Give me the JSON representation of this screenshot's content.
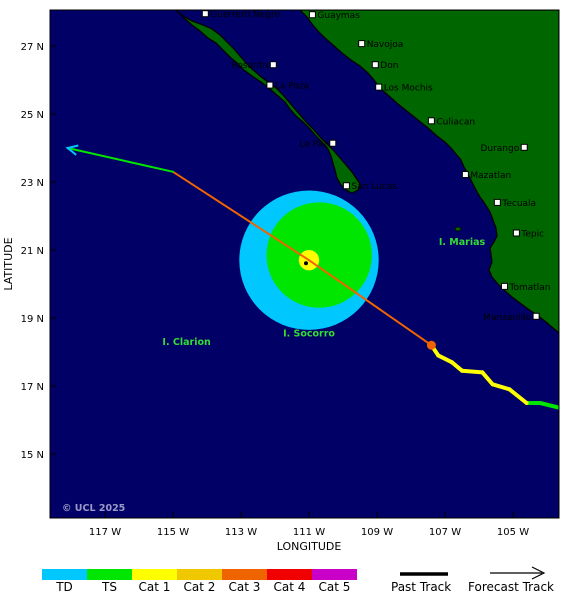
{
  "map": {
    "lat_ticks": [
      "27 N",
      "25 N",
      "23 N",
      "21 N",
      "19 N",
      "17 N",
      "15 N"
    ],
    "lon_ticks": [
      "117 W",
      "115 W",
      "113 W",
      "111 W",
      "109 W",
      "107 W",
      "105 W"
    ],
    "xlabel": "LONGITUDE",
    "ylabel": "LATITUDE",
    "copyright": "© UCL 2025",
    "colors": {
      "ocean": "#000066",
      "land": "#006600",
      "coast": "#000000"
    }
  },
  "cities": [
    {
      "name": "Guerrero Negro",
      "lon": -114.05,
      "lat": 27.95
    },
    {
      "name": "Guaymas",
      "lon": -110.9,
      "lat": 27.92
    },
    {
      "name": "Navojoa",
      "lon": -109.45,
      "lat": 27.07
    },
    {
      "name": "Rosarito",
      "lon": -112.05,
      "lat": 26.45
    },
    {
      "name": "Don",
      "lon": -109.05,
      "lat": 26.45
    },
    {
      "name": "La Poza",
      "lon": -112.15,
      "lat": 25.85
    },
    {
      "name": "Los Mochis",
      "lon": -108.95,
      "lat": 25.79
    },
    {
      "name": "Culiacan",
      "lon": -107.4,
      "lat": 24.8
    },
    {
      "name": "La Paz",
      "lon": -110.3,
      "lat": 24.14
    },
    {
      "name": "Durango",
      "lon": -104.67,
      "lat": 24.02
    },
    {
      "name": "Mazatlan",
      "lon": -106.4,
      "lat": 23.22
    },
    {
      "name": "San Lucas",
      "lon": -109.9,
      "lat": 22.89
    },
    {
      "name": "Tecuala",
      "lon": -105.46,
      "lat": 22.4
    },
    {
      "name": "Tepic",
      "lon": -104.9,
      "lat": 21.5
    },
    {
      "name": "Tomatlan",
      "lon": -105.25,
      "lat": 19.93
    },
    {
      "name": "Manzanillo",
      "lon": -104.32,
      "lat": 19.05
    }
  ],
  "islands": [
    {
      "name": "I. Marias",
      "lon": -106.5,
      "lat": 21.15
    },
    {
      "name": "I. Socorro",
      "lon": -111.0,
      "lat": 18.45
    },
    {
      "name": "I. Clarion",
      "lon": -114.6,
      "lat": 18.2
    }
  ],
  "storm": {
    "center": {
      "lon": -111.0,
      "lat": 20.7
    },
    "radii_deg": {
      "td": 2.05,
      "ts": 1.55,
      "cat1": 0.3
    },
    "past_track": [
      {
        "lon": -101.0,
        "lat": 15.0,
        "category": "TS"
      },
      {
        "lon": -103.4,
        "lat": 16.3,
        "category": "TS"
      },
      {
        "lon": -104.2,
        "lat": 16.5,
        "category": "TS"
      },
      {
        "lon": -104.6,
        "lat": 16.5,
        "category": "Cat 1"
      },
      {
        "lon": -105.1,
        "lat": 16.9,
        "category": "Cat 1"
      },
      {
        "lon": -105.6,
        "lat": 17.05,
        "category": "Cat 1"
      },
      {
        "lon": -105.9,
        "lat": 17.4,
        "category": "Cat 1"
      },
      {
        "lon": -106.5,
        "lat": 17.45,
        "category": "Cat 1"
      },
      {
        "lon": -106.8,
        "lat": 17.7,
        "category": "Cat 1"
      },
      {
        "lon": -107.2,
        "lat": 17.9,
        "category": "Cat 1"
      },
      {
        "lon": -107.4,
        "lat": 18.2,
        "category": "Cat 1"
      }
    ],
    "forecast_track": [
      {
        "lon": -107.4,
        "lat": 18.2,
        "category": "Cat 3"
      },
      {
        "lon": -111.0,
        "lat": 20.7,
        "category": "Cat 3"
      },
      {
        "lon": -115.0,
        "lat": 23.3,
        "category": "TS"
      },
      {
        "lon": -118.1,
        "lat": 24.0,
        "category": "TD"
      }
    ]
  },
  "legend": {
    "categories": [
      {
        "label": "TD",
        "color": "#00c8ff"
      },
      {
        "label": "TS",
        "color": "#00e600"
      },
      {
        "label": "Cat 1",
        "color": "#ffff00"
      },
      {
        "label": "Cat 2",
        "color": "#f0c800"
      },
      {
        "label": "Cat 3",
        "color": "#f06400"
      },
      {
        "label": "Cat 4",
        "color": "#f00000"
      },
      {
        "label": "Cat 5",
        "color": "#c800c8"
      }
    ],
    "past_track_label": "Past Track",
    "forecast_track_label": "Forecast Track"
  }
}
